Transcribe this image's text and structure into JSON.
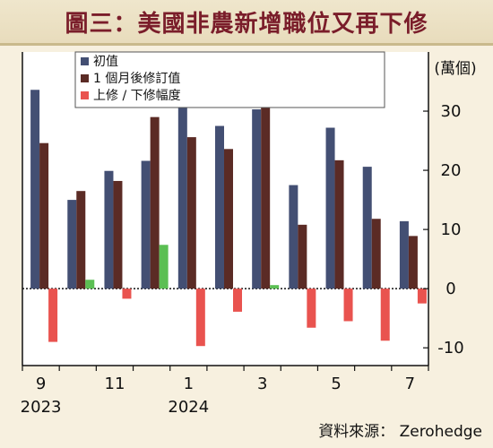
{
  "header": {
    "title": "圖三：美國非農新增職位又再下修"
  },
  "source": "資料來源： Zerohedge",
  "chart_data": {
    "type": "bar",
    "unit_label": "(萬個)",
    "categories": [
      "2023-09",
      "2023-10",
      "2023-11",
      "2023-12",
      "2024-01",
      "2024-02",
      "2024-03",
      "2024-04",
      "2024-05",
      "2024-06",
      "2024-07"
    ],
    "x_tick_labels": [
      {
        "index": 0,
        "text": "9"
      },
      {
        "index": 2,
        "text": "11"
      },
      {
        "index": 4,
        "text": "1"
      },
      {
        "index": 6,
        "text": "3"
      },
      {
        "index": 8,
        "text": "5"
      },
      {
        "index": 10,
        "text": "7"
      }
    ],
    "year_labels": [
      {
        "index": 0,
        "text": "2023"
      },
      {
        "index": 4,
        "text": "2024"
      }
    ],
    "ylim": [
      -13,
      40
    ],
    "yticks": [
      -10,
      0,
      10,
      20,
      30
    ],
    "series": [
      {
        "name": "初值",
        "color": "#434f73",
        "values": [
          33.6,
          15.0,
          19.9,
          21.6,
          35.3,
          27.5,
          30.3,
          17.5,
          27.2,
          20.6,
          11.4
        ]
      },
      {
        "name": "1 個月後修訂值",
        "color": "#5b2b25",
        "values": [
          24.6,
          16.5,
          18.2,
          29.0,
          25.6,
          23.6,
          30.9,
          10.8,
          21.7,
          11.8,
          8.9
        ]
      },
      {
        "name": "上修 / 下修幅度",
        "color": "#e9534f",
        "pos_color": "#5bbf53",
        "values": [
          -9.0,
          1.5,
          -1.7,
          7.4,
          -9.7,
          -3.9,
          0.6,
          -6.6,
          -5.5,
          -8.8,
          -2.5
        ]
      }
    ]
  }
}
